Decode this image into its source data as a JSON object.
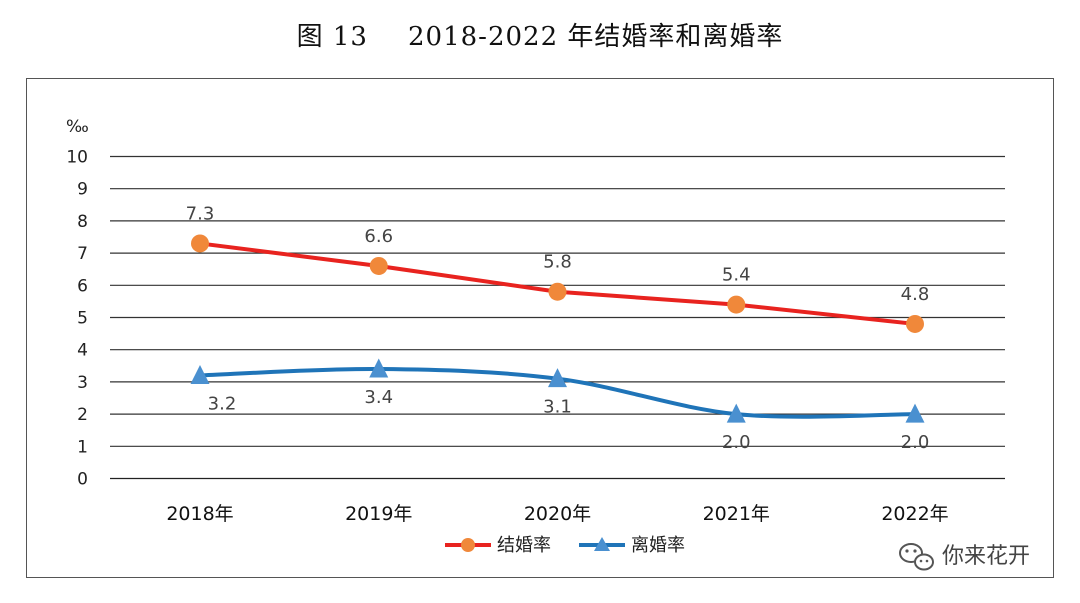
{
  "figure": {
    "number": "图 13",
    "title": "2018-2022 年结婚率和离婚率"
  },
  "chart_data": {
    "type": "line",
    "ylabel": "‰",
    "ylim": [
      0,
      10
    ],
    "yticks": [
      0,
      1,
      2,
      3,
      4,
      5,
      6,
      7,
      8,
      9,
      10
    ],
    "categories": [
      "2018年",
      "2019年",
      "2020年",
      "2021年",
      "2022年"
    ],
    "grid": true,
    "legend_position": "bottom",
    "series": [
      {
        "name": "结婚率",
        "values": [
          7.3,
          6.6,
          5.8,
          5.4,
          4.8
        ],
        "labels": [
          "7.3",
          "6.6",
          "5.8",
          "5.4",
          "4.8"
        ],
        "color": "#e8231f",
        "marker": "circle",
        "marker_color": "#f0883a"
      },
      {
        "name": "离婚率",
        "values": [
          3.2,
          3.4,
          3.1,
          2.0,
          2.0
        ],
        "labels": [
          "3.2",
          "3.4",
          "3.1",
          "2.0",
          "2.0"
        ],
        "color": "#1f74b8",
        "marker": "triangle",
        "marker_color": "#4a90d0"
      }
    ]
  },
  "watermark": {
    "text": "你来花开",
    "icon": "wechat-icon"
  }
}
